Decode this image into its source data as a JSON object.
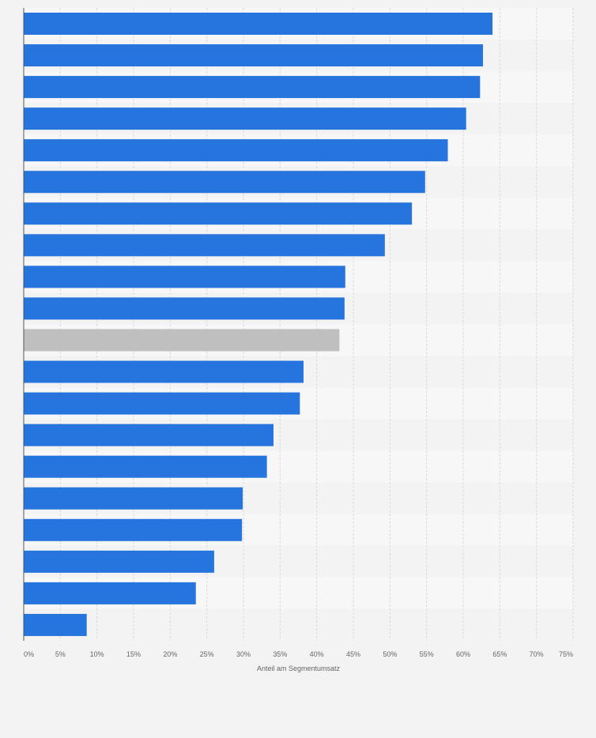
{
  "chart_data": {
    "type": "bar",
    "orientation": "horizontal",
    "title": "",
    "xlabel": "Anteil am Segmentumsatz",
    "ylabel": "",
    "xlim": [
      0,
      75
    ],
    "xticks": [
      "0%",
      "5%",
      "10%",
      "15%",
      "20%",
      "25%",
      "30%",
      "35%",
      "40%",
      "45%",
      "50%",
      "55%",
      "60%",
      "65%",
      "70%",
      "75%"
    ],
    "categories": [
      "",
      "",
      "",
      "",
      "",
      "",
      "",
      "",
      "",
      "",
      "",
      "",
      "",
      "",
      "",
      "",
      "",
      "",
      "",
      ""
    ],
    "values": [
      64.0,
      62.7,
      62.3,
      60.4,
      57.9,
      54.8,
      53.0,
      49.3,
      43.9,
      43.8,
      43.1,
      38.2,
      37.7,
      34.1,
      33.2,
      29.9,
      29.8,
      26.0,
      23.5,
      8.6
    ],
    "highlight_index": 10,
    "grid": true,
    "legend": "none",
    "colors": {
      "bar": "#2675de",
      "highlight": "#bfbfbf",
      "band_light": "#f7f7f7",
      "band_dark": "#f3f3f3",
      "gridline": "#dadada",
      "axis": "#555555"
    }
  }
}
